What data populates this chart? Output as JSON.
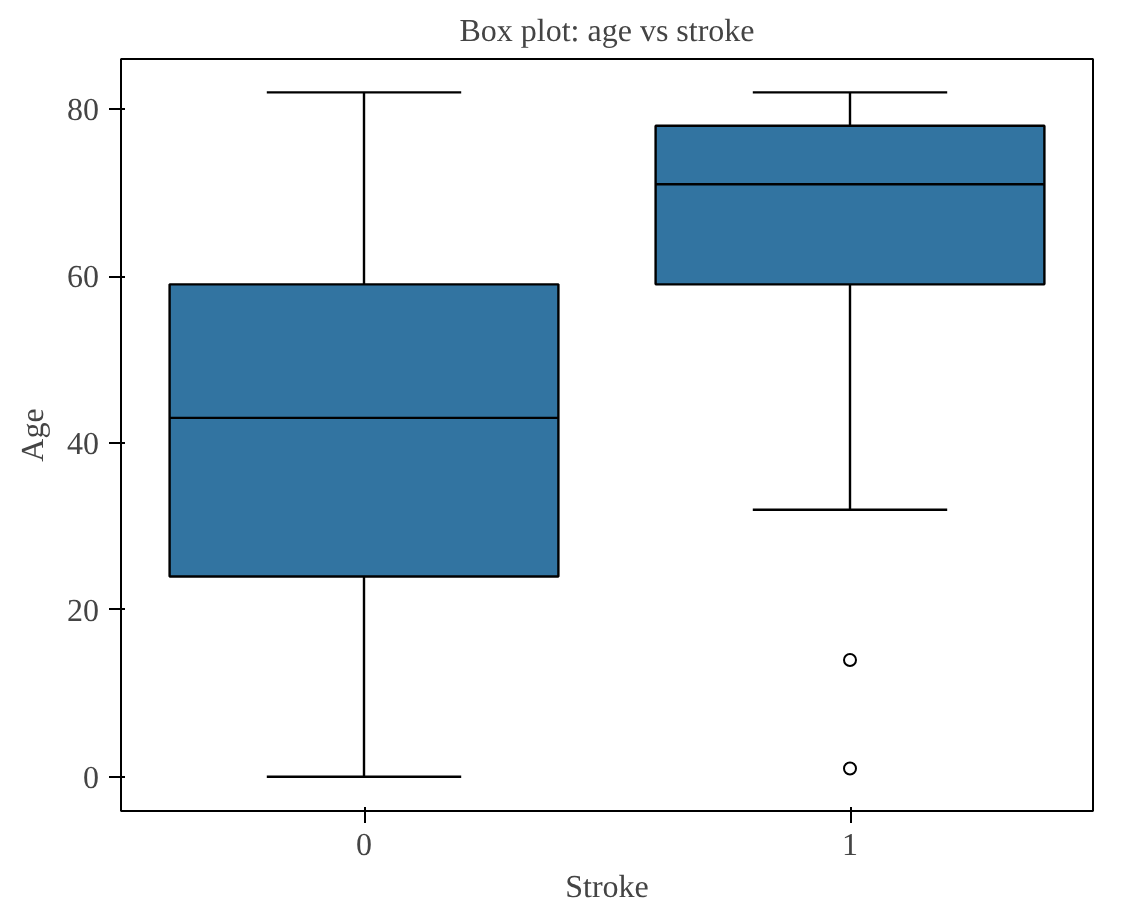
{
  "chart_data": {
    "type": "box",
    "title": "Box plot: age vs stroke",
    "xlabel": "Stroke",
    "ylabel": "Age",
    "categories": [
      "0",
      "1"
    ],
    "color": "#3274a1",
    "ylim": [
      -4.1,
      86
    ],
    "yticks": [
      0,
      20,
      40,
      60,
      80
    ],
    "grid": false,
    "boxes": [
      {
        "low": 0,
        "q1": 24,
        "median": 43,
        "q3": 59,
        "high": 82
      },
      {
        "low": 32,
        "q1": 59,
        "median": 71,
        "q3": 78,
        "high": 82,
        "outliers": [
          14,
          1
        ]
      }
    ]
  }
}
